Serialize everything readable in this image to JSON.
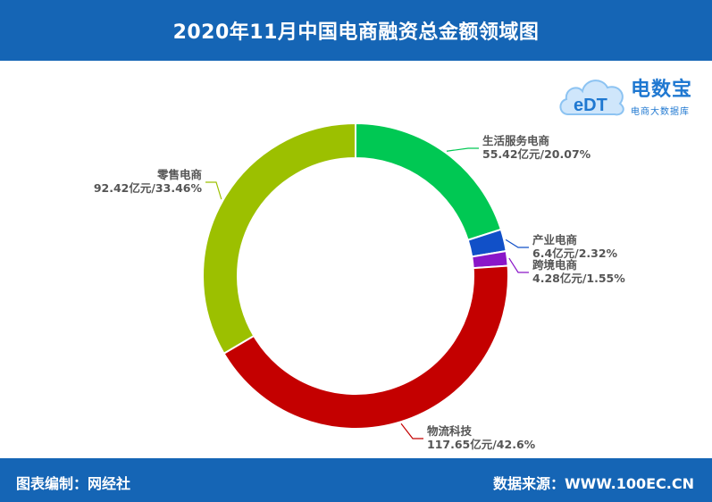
{
  "header": {
    "title": "2020年11月中国电商融资总金额领域图"
  },
  "logo": {
    "icon_text": "eDT",
    "brand": "电数宝",
    "sub": "电商大数据库"
  },
  "footer": {
    "left": "图表编制：网经社",
    "right": "数据来源：WWW.100EC.CN"
  },
  "colors": {
    "header_bg": "#1565b5"
  },
  "chart_data": {
    "type": "pie",
    "title": "2020年11月中国电商融资总金额领域图",
    "series": [
      {
        "name": "生活服务电商",
        "value": 55.42,
        "value_label": "55.42亿元/20.07%",
        "percent": 20.07,
        "color": "#00c853"
      },
      {
        "name": "产业电商",
        "value": 6.4,
        "value_label": "6.4亿元/2.32%",
        "percent": 2.32,
        "color": "#1150c8"
      },
      {
        "name": "跨境电商",
        "value": 4.28,
        "value_label": "4.28亿元/1.55%",
        "percent": 1.55,
        "color": "#8a16c8"
      },
      {
        "name": "物流科技",
        "value": 117.65,
        "value_label": "117.65亿元/42.6%",
        "percent": 42.6,
        "color": "#c40000"
      },
      {
        "name": "零售电商",
        "value": 92.42,
        "value_label": "92.42亿元/33.46%",
        "percent": 33.46,
        "color": "#9cc000"
      }
    ]
  }
}
